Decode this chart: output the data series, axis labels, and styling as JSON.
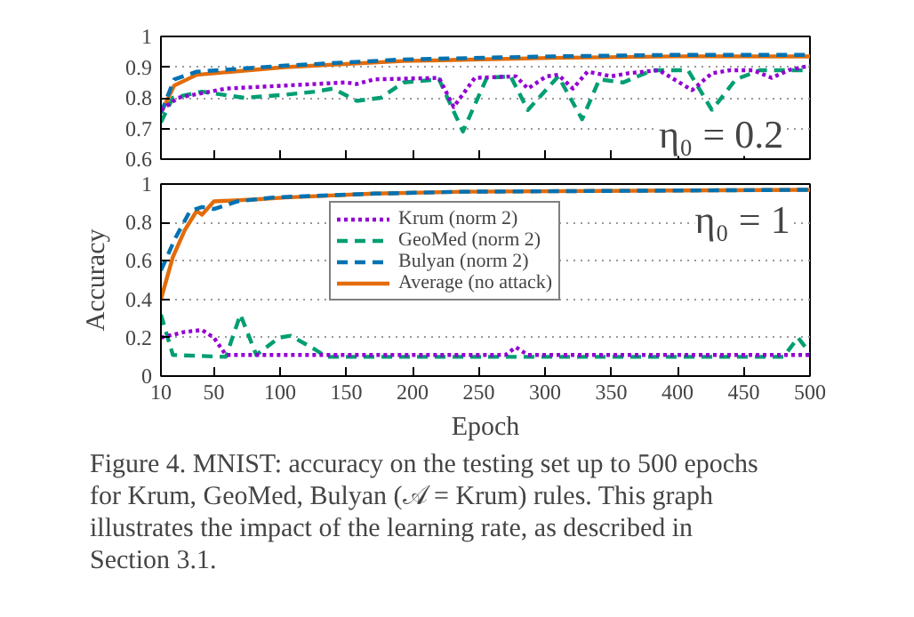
{
  "chart_data": [
    {
      "type": "line",
      "xlim": [
        10,
        500
      ],
      "xticks": [
        10,
        50,
        100,
        150,
        200,
        250,
        300,
        350,
        400,
        450,
        500
      ],
      "ylim": [
        0.6,
        1
      ],
      "yticks": [
        0.6,
        0.7,
        0.8,
        0.9,
        1
      ],
      "tick_labels": "y",
      "grid": "y",
      "legend": false,
      "annotations": [
        "η₀ = 0.2"
      ],
      "series": [
        {
          "color": "#9400d3",
          "line_style": "dotted",
          "x": [
            10,
            23,
            59,
            104,
            149,
            158,
            171,
            220,
            231,
            247,
            278,
            287,
            301,
            310,
            321,
            332,
            350,
            363,
            386,
            411,
            426,
            440,
            457,
            471,
            484,
            500
          ],
          "values": [
            0.76,
            0.8,
            0.83,
            0.84,
            0.85,
            0.845,
            0.86,
            0.865,
            0.77,
            0.865,
            0.87,
            0.83,
            0.87,
            0.875,
            0.83,
            0.885,
            0.87,
            0.88,
            0.89,
            0.825,
            0.88,
            0.89,
            0.89,
            0.865,
            0.89,
            0.905
          ]
        },
        {
          "color": "#009e73",
          "line_style": "dashed",
          "x": [
            10,
            19,
            41,
            73,
            104,
            126,
            140,
            158,
            176,
            193,
            220,
            238,
            256,
            274,
            287,
            310,
            328,
            341,
            359,
            381,
            408,
            426,
            444,
            462,
            500
          ],
          "values": [
            0.72,
            0.8,
            0.82,
            0.8,
            0.81,
            0.82,
            0.83,
            0.79,
            0.8,
            0.85,
            0.86,
            0.69,
            0.865,
            0.87,
            0.76,
            0.87,
            0.73,
            0.86,
            0.85,
            0.89,
            0.89,
            0.76,
            0.86,
            0.89,
            0.89
          ]
        },
        {
          "color": "#0072b2",
          "line_style": "dashed",
          "x": [
            10,
            20,
            37,
            104,
            193,
            305,
            400,
            500
          ],
          "values": [
            0.75,
            0.86,
            0.885,
            0.905,
            0.925,
            0.935,
            0.94,
            0.94
          ]
        },
        {
          "color": "#e36c0a",
          "line_style": "solid",
          "x": [
            10,
            20,
            37,
            104,
            193,
            305,
            400,
            500
          ],
          "values": [
            0.75,
            0.84,
            0.875,
            0.9,
            0.92,
            0.93,
            0.935,
            0.935
          ]
        }
      ]
    },
    {
      "type": "line",
      "xlim": [
        10,
        500
      ],
      "xticks": [
        10,
        50,
        100,
        150,
        200,
        250,
        300,
        350,
        400,
        450,
        500
      ],
      "ylim": [
        0,
        1
      ],
      "yticks": [
        0,
        0.2,
        0.4,
        0.6,
        0.8,
        1
      ],
      "grid": "y",
      "legend": "top",
      "xlabel": "Epoch",
      "ylabel": "Accuracy",
      "annotations": [
        "η₀ = 1",
        "Figure 4. MNIST: accuracy on the testing set up to 500 epochs for Krum, GeoMed, Bulyan (𝒜 = Krum) rules. This graph illustrates the impact of the learning rate, as described in Section 3.1."
      ],
      "series": [
        {
          "name": "Krum (norm 2)",
          "color": "#9400d3",
          "line_style": "dotted",
          "x": [
            10,
            28,
            41,
            50,
            59,
            270,
            278,
            287,
            500
          ],
          "values": [
            0.2,
            0.23,
            0.24,
            0.2,
            0.11,
            0.11,
            0.15,
            0.11,
            0.11
          ]
        },
        {
          "name": "GeoMed (norm 2)",
          "color": "#009e73",
          "line_style": "dashed",
          "x": [
            10,
            19,
            59,
            70,
            82,
            99,
            108,
            126,
            135,
            480,
            491,
            500
          ],
          "values": [
            0.32,
            0.11,
            0.1,
            0.32,
            0.11,
            0.2,
            0.21,
            0.14,
            0.1,
            0.1,
            0.2,
            0.12
          ]
        },
        {
          "name": "Bulyan (norm 2)",
          "color": "#0072b2",
          "line_style": "dashed",
          "x": [
            10,
            21,
            32,
            41,
            50,
            68,
            95,
            171,
            238,
            500
          ],
          "values": [
            0.55,
            0.72,
            0.86,
            0.88,
            0.87,
            0.91,
            0.93,
            0.95,
            0.96,
            0.97
          ]
        },
        {
          "name": "Average (no attack)",
          "color": "#e36c0a",
          "line_style": "solid",
          "x": [
            10,
            19,
            28,
            37,
            41,
            50,
            82,
            104,
            171,
            238,
            500
          ],
          "values": [
            0.4,
            0.62,
            0.76,
            0.86,
            0.84,
            0.91,
            0.92,
            0.93,
            0.95,
            0.96,
            0.97
          ]
        }
      ]
    }
  ]
}
